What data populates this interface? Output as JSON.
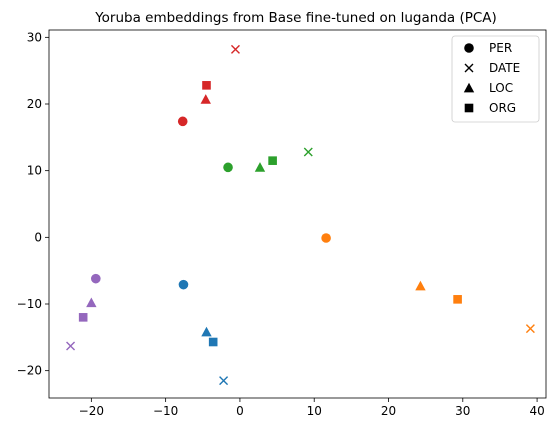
{
  "chart_data": {
    "type": "scatter",
    "title": "Yoruba embeddings from Base fine-tuned on luganda (PCA)",
    "xlabel": "",
    "ylabel": "",
    "xlim": [
      -25.7,
      41.2
    ],
    "ylim": [
      -24.1,
      31.1
    ],
    "xticks": [
      -20,
      -10,
      0,
      10,
      20,
      30,
      40
    ],
    "yticks": [
      -20,
      -10,
      0,
      10,
      20,
      30
    ],
    "grid": false,
    "legend": {
      "placement": "top-right",
      "entries": [
        {
          "label": "PER",
          "marker": "circle"
        },
        {
          "label": "DATE",
          "marker": "x"
        },
        {
          "label": "LOC",
          "marker": "triangle"
        },
        {
          "label": "ORG",
          "marker": "square"
        }
      ]
    },
    "points": [
      {
        "x": -7.7,
        "y": 17.4,
        "marker": "circle",
        "color": "#d62728"
      },
      {
        "x": -0.6,
        "y": 28.2,
        "marker": "x",
        "color": "#d62728"
      },
      {
        "x": -4.6,
        "y": 20.7,
        "marker": "triangle",
        "color": "#d62728"
      },
      {
        "x": -4.5,
        "y": 22.8,
        "marker": "square",
        "color": "#d62728"
      },
      {
        "x": -1.6,
        "y": 10.5,
        "marker": "circle",
        "color": "#2ca02c"
      },
      {
        "x": 9.2,
        "y": 12.8,
        "marker": "x",
        "color": "#2ca02c"
      },
      {
        "x": 2.7,
        "y": 10.5,
        "marker": "triangle",
        "color": "#2ca02c"
      },
      {
        "x": 4.4,
        "y": 11.5,
        "marker": "square",
        "color": "#2ca02c"
      },
      {
        "x": 11.6,
        "y": -0.1,
        "marker": "circle",
        "color": "#ff7f0e"
      },
      {
        "x": 39.1,
        "y": -13.7,
        "marker": "x",
        "color": "#ff7f0e"
      },
      {
        "x": 24.3,
        "y": -7.3,
        "marker": "triangle",
        "color": "#ff7f0e"
      },
      {
        "x": 29.3,
        "y": -9.3,
        "marker": "square",
        "color": "#ff7f0e"
      },
      {
        "x": -7.6,
        "y": -7.1,
        "marker": "circle",
        "color": "#1f77b4"
      },
      {
        "x": -2.2,
        "y": -21.5,
        "marker": "x",
        "color": "#1f77b4"
      },
      {
        "x": -4.5,
        "y": -14.2,
        "marker": "triangle",
        "color": "#1f77b4"
      },
      {
        "x": -3.6,
        "y": -15.7,
        "marker": "square",
        "color": "#1f77b4"
      },
      {
        "x": -19.4,
        "y": -6.2,
        "marker": "circle",
        "color": "#9467bd"
      },
      {
        "x": -22.8,
        "y": -16.3,
        "marker": "x",
        "color": "#9467bd"
      },
      {
        "x": -20.0,
        "y": -9.8,
        "marker": "triangle",
        "color": "#9467bd"
      },
      {
        "x": -21.1,
        "y": -12.0,
        "marker": "square",
        "color": "#9467bd"
      }
    ]
  }
}
